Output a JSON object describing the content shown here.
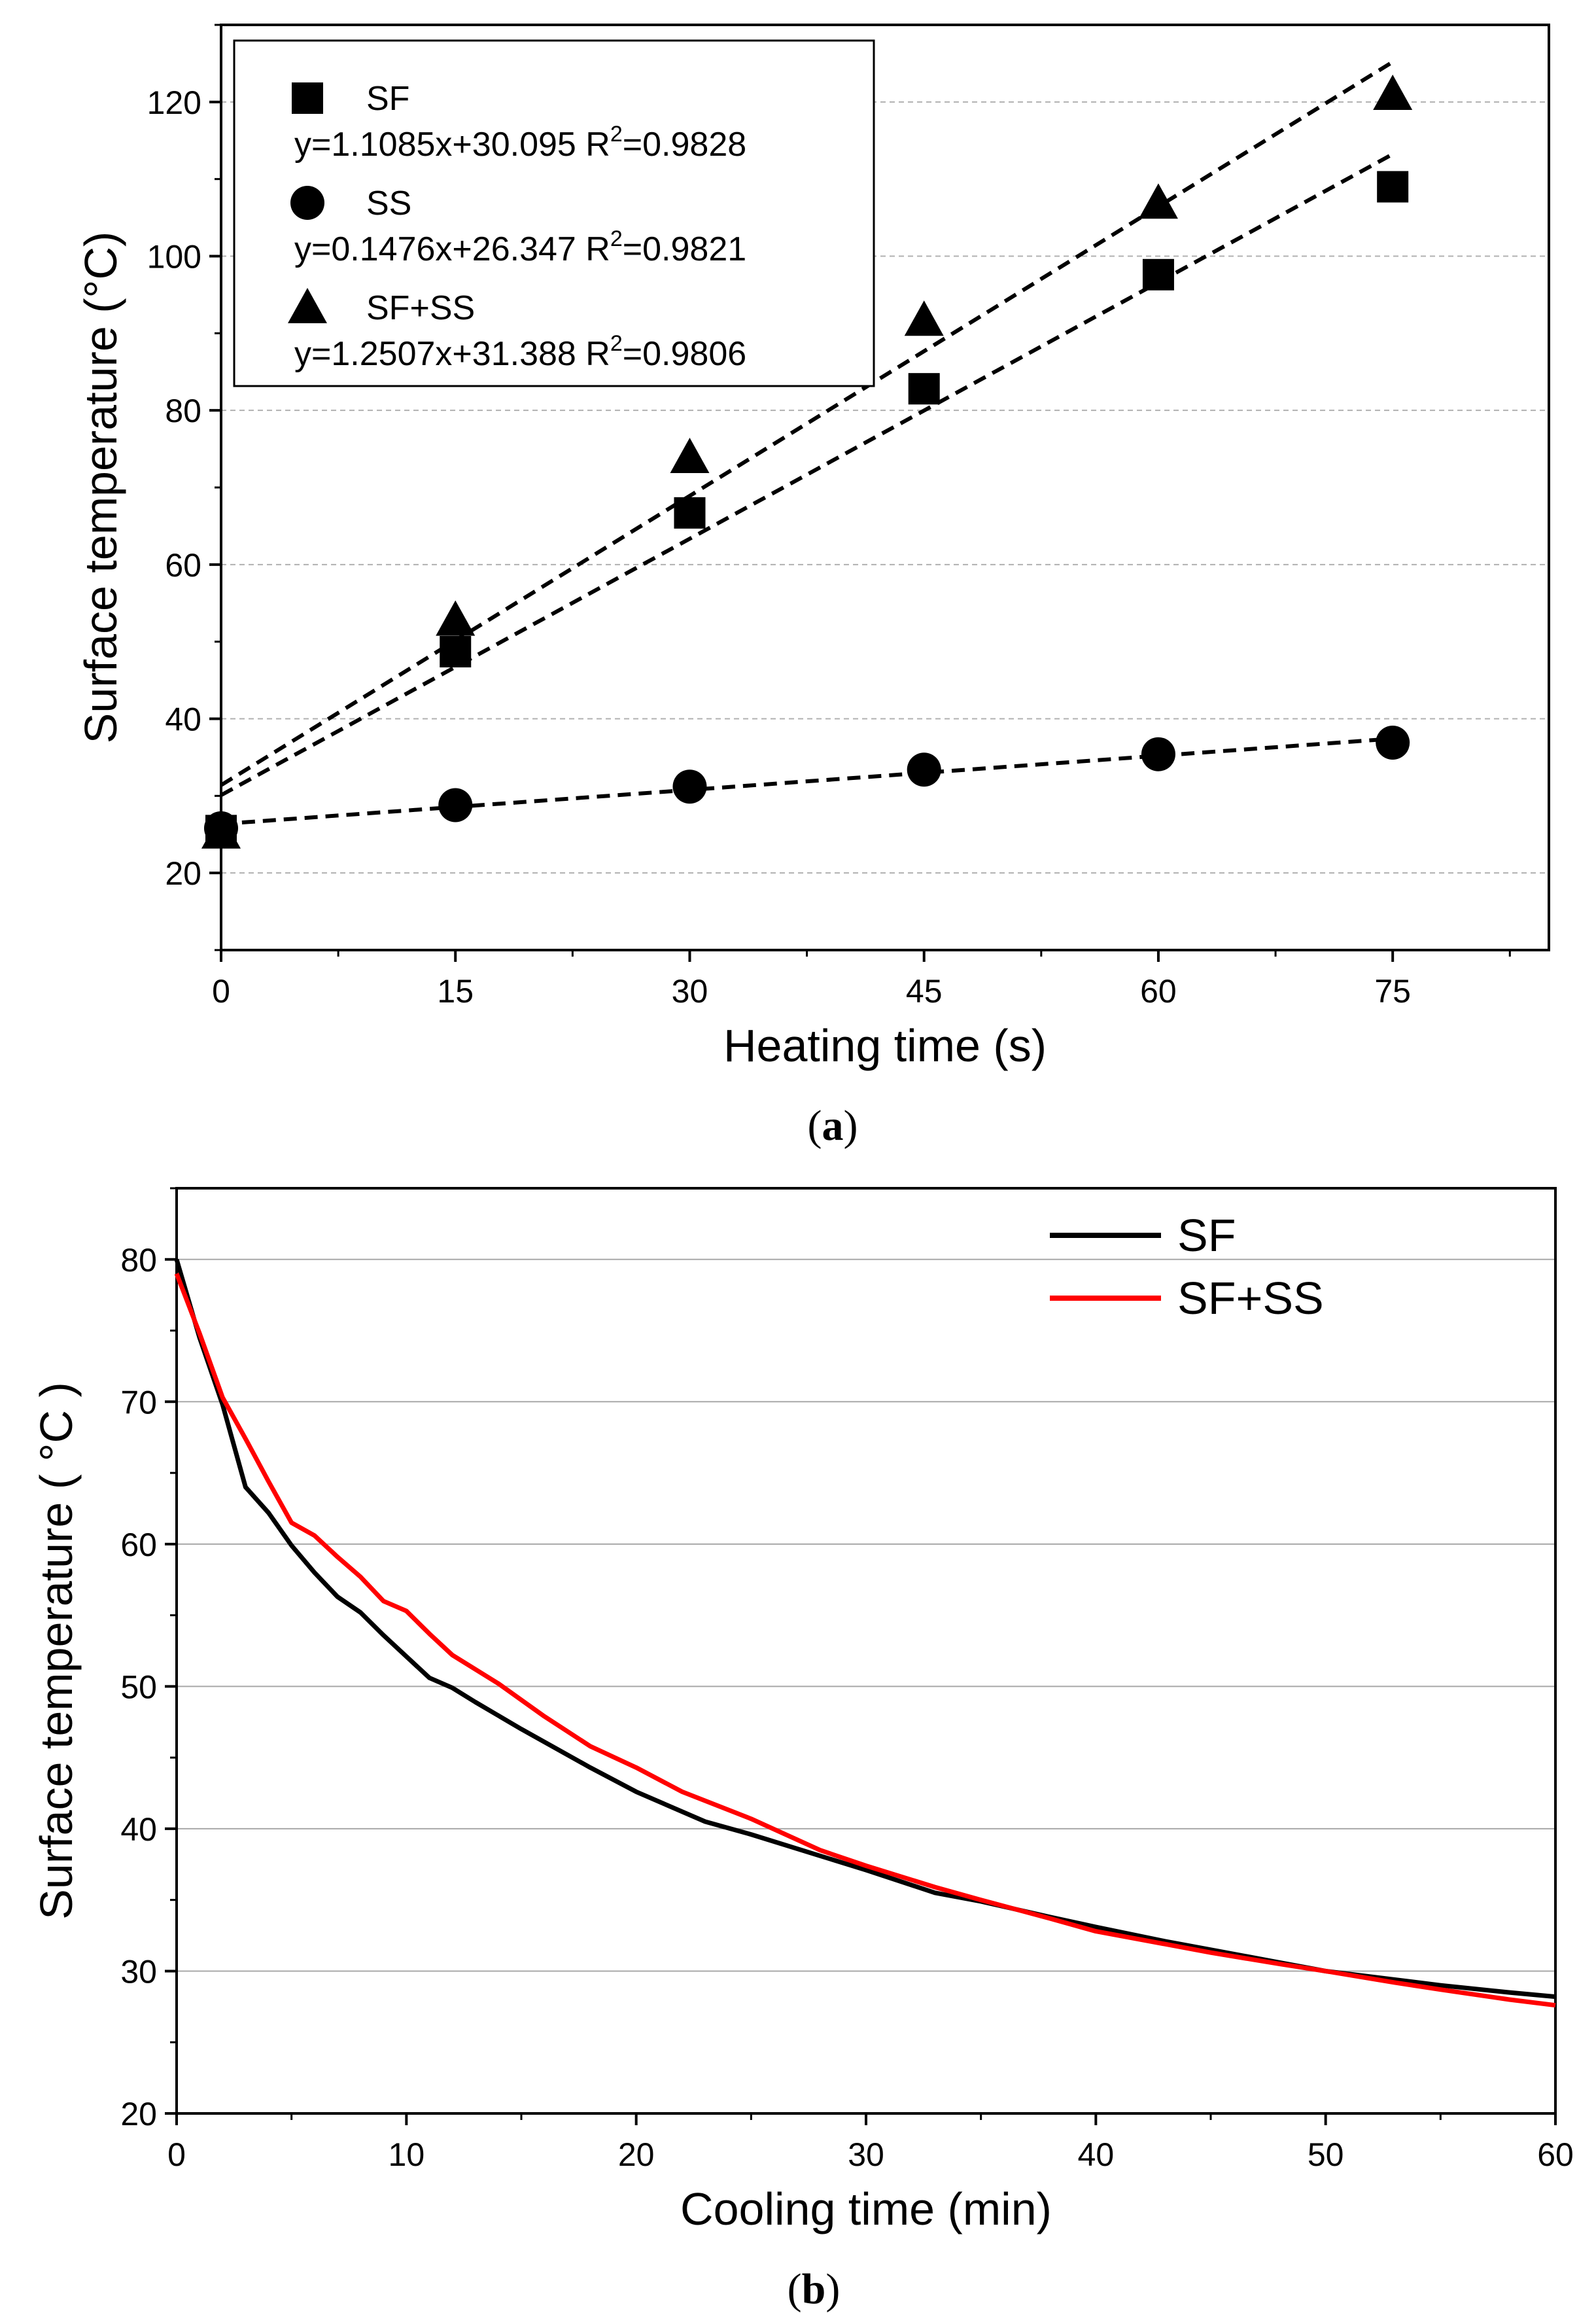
{
  "chart_data": [
    {
      "id": "a",
      "type": "scatter",
      "caption": "(a)",
      "caption_parts": [
        "(",
        "a",
        ")"
      ],
      "xlabel": "Heating time (s)",
      "ylabel": "Surface temperature (°C)",
      "xlim": [
        0,
        85
      ],
      "ylim": [
        10,
        130
      ],
      "xticks": [
        0,
        15,
        30,
        45,
        60,
        75
      ],
      "xticks_minor": [
        7.5,
        22.5,
        37.5,
        52.5,
        67.5,
        82.5
      ],
      "yticks": [
        20,
        40,
        60,
        80,
        100,
        120
      ],
      "yticks_minor": [
        10,
        30,
        50,
        70,
        90,
        110,
        130
      ],
      "grid": "dashed horizontal at major y ticks",
      "legend_position": "top-left",
      "series": [
        {
          "name": "SF",
          "marker": "square",
          "x": [
            0,
            15,
            30,
            45,
            60,
            75
          ],
          "y": [
            25.5,
            48.7,
            66.7,
            82.8,
            97.6,
            109.0
          ],
          "fit_label": "y=1.1085x+30.095  R",
          "fit_r2": "=0.9828",
          "fit": {
            "slope": 1.1085,
            "intercept": 30.095
          }
        },
        {
          "name": "SS",
          "marker": "circle",
          "x": [
            0,
            15,
            30,
            45,
            60,
            75
          ],
          "y": [
            25.8,
            28.8,
            31.2,
            33.4,
            35.4,
            36.9
          ],
          "fit_label": "y=0.1476x+26.347  R",
          "fit_r2": "=0.9821",
          "fit": {
            "slope": 0.1476,
            "intercept": 26.347
          }
        },
        {
          "name": "SF+SS",
          "marker": "triangle",
          "x": [
            0,
            15,
            30,
            45,
            60,
            75
          ],
          "y": [
            25.2,
            52.8,
            73.9,
            91.7,
            106.9,
            121.0
          ],
          "fit_label": "y=1.2507x+31.388  R",
          "fit_r2": "=0.9806",
          "fit": {
            "slope": 1.2507,
            "intercept": 31.388
          }
        }
      ],
      "r2_superscript": "2"
    },
    {
      "id": "b",
      "type": "line",
      "caption": "(b)",
      "caption_parts": [
        "(",
        "b",
        ")"
      ],
      "xlabel": "Cooling time (min)",
      "ylabel": "Surface temperature ( °C )",
      "xlim": [
        0,
        60
      ],
      "ylim": [
        20,
        85
      ],
      "xticks": [
        0,
        10,
        20,
        30,
        40,
        50,
        60
      ],
      "xticks_minor": [
        5,
        15,
        25,
        35,
        45,
        55
      ],
      "yticks": [
        20,
        30,
        40,
        50,
        60,
        70,
        80
      ],
      "yticks_minor": [
        25,
        35,
        45,
        55,
        65,
        75,
        85
      ],
      "grid": "solid horizontal at major y ticks",
      "legend_position": "top-right",
      "series": [
        {
          "name": "SF",
          "color": "#000000",
          "x": [
            0,
            1,
            2,
            3,
            4,
            5,
            6,
            7,
            8,
            9,
            10,
            11,
            12,
            13,
            15,
            18,
            20,
            23,
            25,
            28,
            30,
            33,
            35,
            38,
            40,
            43,
            45,
            48,
            50,
            53,
            55,
            58,
            60
          ],
          "y": [
            80.0,
            74.5,
            69.8,
            64.0,
            62.2,
            59.9,
            58.0,
            56.3,
            55.2,
            53.6,
            52.1,
            50.6,
            49.9,
            48.9,
            47.0,
            44.3,
            42.6,
            40.5,
            39.6,
            38.1,
            37.1,
            35.5,
            34.9,
            33.8,
            33.1,
            32.1,
            31.5,
            30.6,
            30.0,
            29.4,
            29.0,
            28.5,
            28.2
          ]
        },
        {
          "name": "SF+SS",
          "color": "#ff0000",
          "x": [
            0,
            1,
            2,
            3,
            4,
            5,
            6,
            7,
            8,
            9,
            10,
            11,
            12,
            14,
            16,
            18,
            20,
            22,
            25,
            28,
            30,
            33,
            35,
            38,
            40,
            43,
            45,
            48,
            50,
            53,
            55,
            58,
            60
          ],
          "y": [
            79.0,
            74.8,
            70.3,
            67.4,
            64.4,
            61.5,
            60.6,
            59.1,
            57.7,
            56.0,
            55.3,
            53.7,
            52.2,
            50.2,
            47.9,
            45.8,
            44.3,
            42.6,
            40.7,
            38.5,
            37.4,
            35.9,
            35.0,
            33.7,
            32.8,
            31.9,
            31.3,
            30.5,
            30.0,
            29.2,
            28.7,
            28.0,
            27.6
          ]
        }
      ]
    }
  ]
}
